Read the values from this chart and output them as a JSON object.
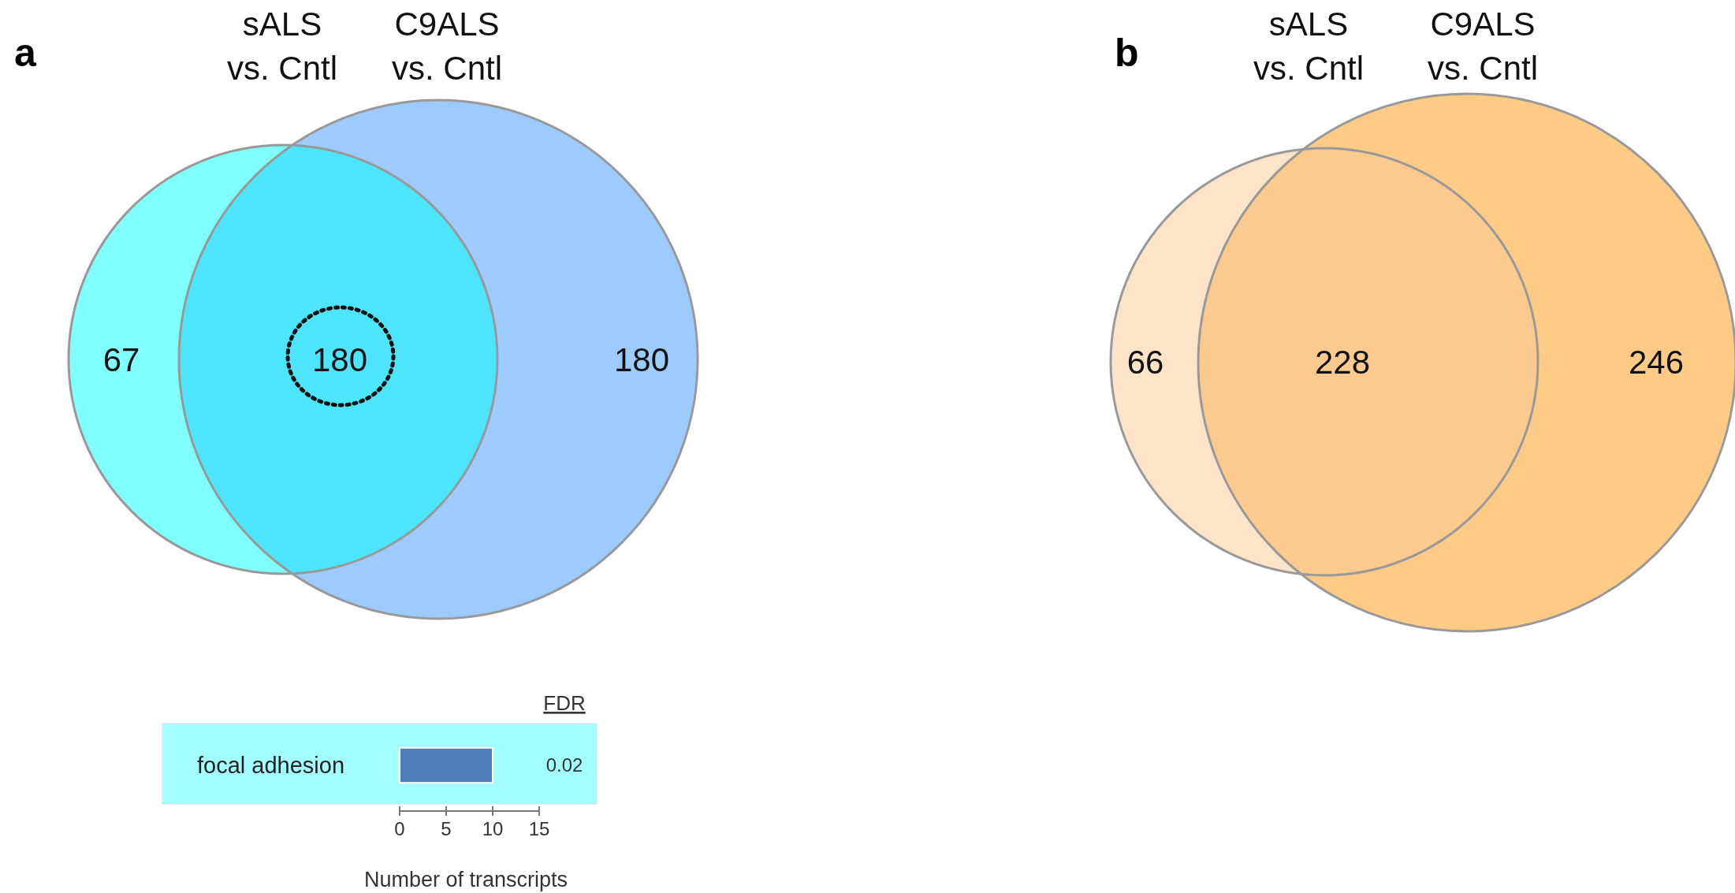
{
  "chart_data": [
    {
      "type": "other",
      "title": "a",
      "categories": [
        null,
        null,
        null
      ],
      "values": [
        67,
        180,
        180
      ],
      "colors": [
        "#80ffff",
        "#4de5fc",
        "#9dcbff"
      ],
      "data_labels": true,
      "annotations": [
        "sALS\nvs. Cntl",
        "C9ALS\nvs. Cntl"
      ]
    },
    {
      "type": "bar",
      "orientation": "horizontal",
      "categories": [
        "focal adhesion"
      ],
      "values": [
        10
      ],
      "color": "#4f7fba",
      "xlim": [
        0,
        15
      ],
      "xticks": [
        0,
        5,
        10,
        15
      ],
      "xlabel": "Number of transcripts",
      "annotations": [
        "FDR",
        "0.02"
      ],
      "bands": [
        {
          "axis": "y",
          "from": "focal adhesion",
          "to": "focal adhesion",
          "color": "#a3ffff"
        }
      ]
    },
    {
      "type": "other",
      "title": "b",
      "categories": [
        null,
        null,
        null
      ],
      "values": [
        66,
        228,
        246
      ],
      "colors": [
        "#fde3c8",
        "#fbca8e",
        "#fdcb85"
      ],
      "data_labels": true,
      "annotations": [
        "sALS\nvs. Cntl",
        "C9ALS\nvs. Cntl"
      ]
    }
  ]
}
